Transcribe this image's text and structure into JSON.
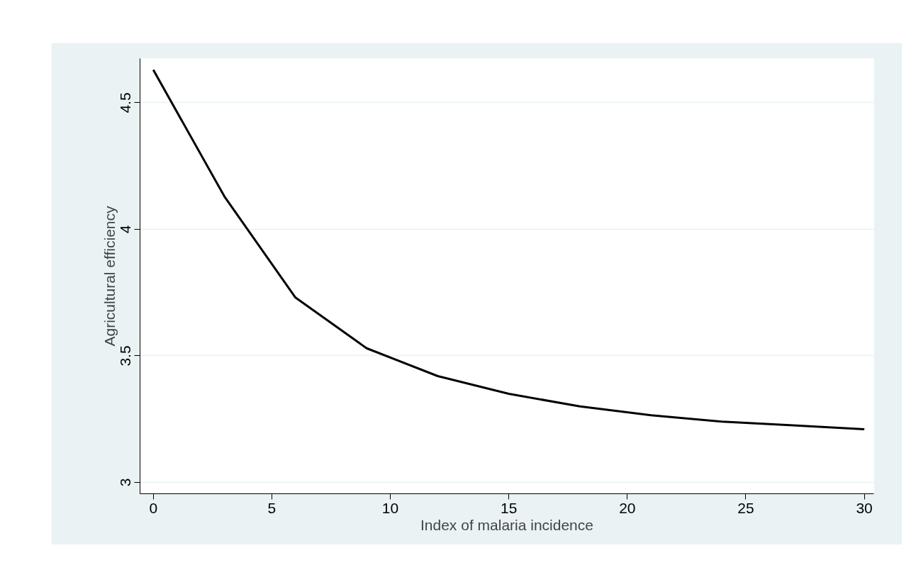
{
  "chart_data": {
    "type": "line",
    "xlabel": "Index of malaria incidence",
    "ylabel": "Agricultural efficiency",
    "x": [
      0,
      3,
      6,
      9,
      12,
      15,
      18,
      21,
      24,
      27,
      30
    ],
    "series": [
      {
        "color": "#000000",
        "values": [
          4.63,
          4.13,
          3.73,
          3.53,
          3.42,
          3.35,
          3.3,
          3.265,
          3.24,
          3.225,
          3.21
        ]
      }
    ],
    "xlim": [
      -0.56,
      30.4
    ],
    "ylim": [
      2.955,
      4.675
    ],
    "xticks": [
      0,
      5,
      10,
      15,
      20,
      25,
      30
    ],
    "yticks": [
      3,
      3.5,
      4,
      4.5
    ],
    "grid": "y",
    "marker": "none",
    "line_style": "solid"
  }
}
